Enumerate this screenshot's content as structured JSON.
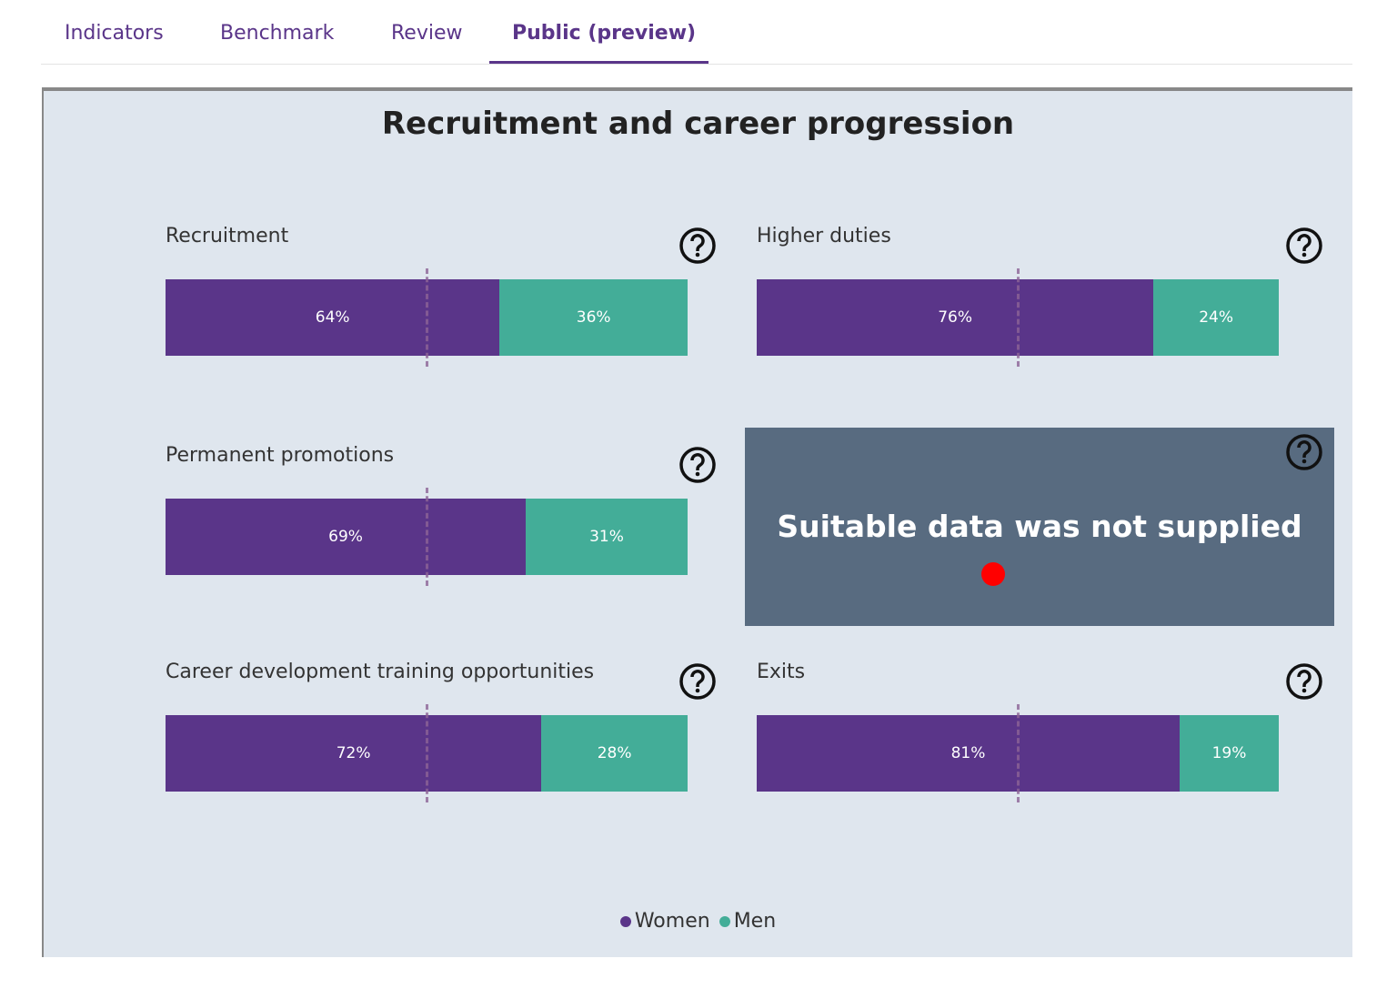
{
  "tabs": [
    "Indicators",
    "Benchmark",
    "Review",
    "Public (preview)"
  ],
  "active_tab": 3,
  "panel": {
    "title": "Recruitment and career progression",
    "xlim": [
      0,
      100
    ],
    "reference": 50,
    "legend": [
      {
        "name": "Women",
        "color": "#5a3589"
      },
      {
        "name": "Men",
        "color": "#43ad98"
      }
    ],
    "items": [
      {
        "type": "bar",
        "title": "Recruitment",
        "values": [
          64,
          36
        ],
        "value_labels": [
          "64%",
          "36%"
        ]
      },
      {
        "type": "bar",
        "title": "Higher duties",
        "values": [
          76,
          24
        ],
        "value_labels": [
          "76%",
          "24%"
        ]
      },
      {
        "type": "bar",
        "title": "Permanent promotions",
        "values": [
          69,
          31
        ],
        "value_labels": [
          "69%",
          "31%"
        ]
      },
      {
        "type": "message",
        "message": "Suitable data was not supplied"
      },
      {
        "type": "bar",
        "title": "Career development training opportunities",
        "values": [
          72,
          28
        ],
        "value_labels": [
          "72%",
          "28%"
        ]
      },
      {
        "type": "bar",
        "title": "Exits",
        "values": [
          81,
          19
        ],
        "value_labels": [
          "81%",
          "19%"
        ]
      }
    ]
  }
}
